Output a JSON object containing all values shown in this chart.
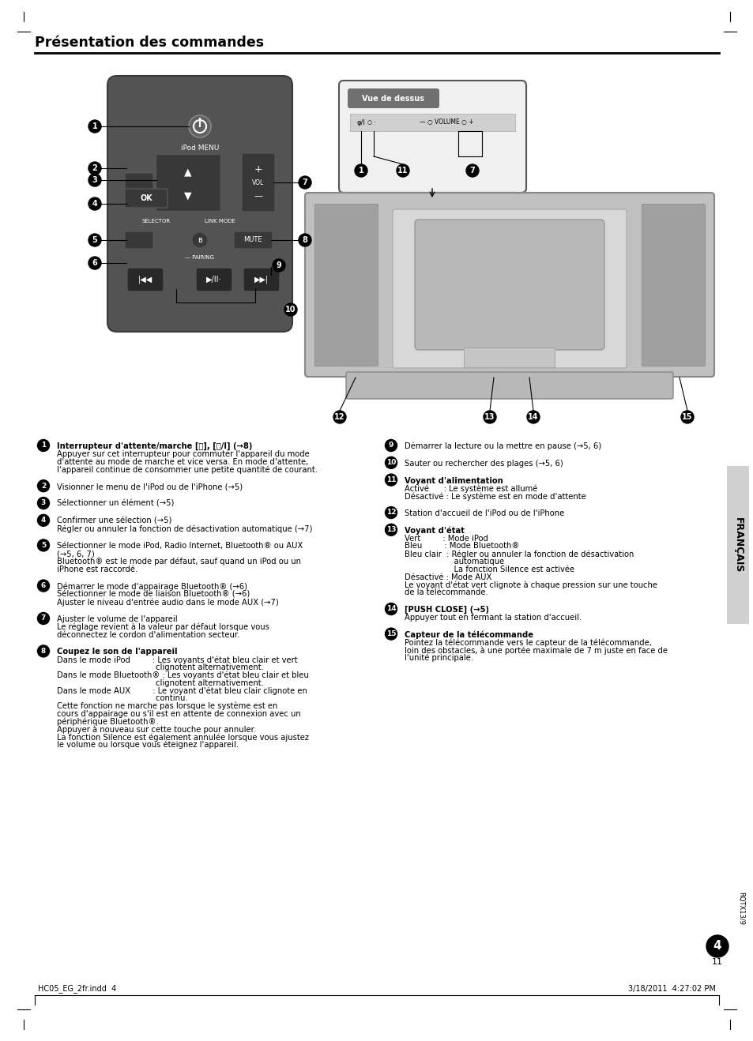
{
  "title": "Présentation des commandes",
  "bg_color": "#ffffff",
  "page_number": "11",
  "francais_sidebar": "FRANÇAIS",
  "rqtx": "RQTX13/9",
  "footer_left": "HC05_EG_2fr.indd  4",
  "footer_right": "3/18/2011  4:27:02 PM",
  "page_num_circle": "4",
  "sections_left": [
    {
      "num": "1",
      "lines": [
        [
          "bold",
          "Interrupteur d'attente/marche [⌛], [⌛/I] (→8)"
        ],
        [
          "normal",
          "Appuyer sur cet interrupteur pour commuter l'appareil du mode"
        ],
        [
          "normal",
          "d'attente au mode de marche et vice versa. En mode d'attente,"
        ],
        [
          "normal",
          "l'appareil continue de consommer une petite quantité de courant."
        ]
      ]
    },
    {
      "num": "2",
      "lines": [
        [
          "normal",
          "Visionner le menu de l'iPod ou de l'iPhone (→5)"
        ]
      ]
    },
    {
      "num": "3",
      "lines": [
        [
          "normal",
          "Sélectionner un élément (→5)"
        ]
      ]
    },
    {
      "num": "4",
      "lines": [
        [
          "normal",
          "Confirmer une sélection (→5)"
        ],
        [
          "normal",
          "Régler ou annuler la fonction de désactivation automatique (→7)"
        ]
      ]
    },
    {
      "num": "5",
      "lines": [
        [
          "normal",
          "Sélectionner le mode iPod, Radio Internet, Bluetooth® ou AUX"
        ],
        [
          "normal",
          "(→5, 6, 7)"
        ],
        [
          "normal",
          "Bluetooth® est le mode par défaut, sauf quand un iPod ou un"
        ],
        [
          "normal",
          "iPhone est raccordé."
        ]
      ]
    },
    {
      "num": "6",
      "lines": [
        [
          "normal",
          "Démarrer le mode d'appairage Bluetooth® (→6)"
        ],
        [
          "normal",
          "Sélectionner le mode de liaison Bluetooth® (→6)"
        ],
        [
          "normal",
          "Ajuster le niveau d'entrée audio dans le mode AUX (→7)"
        ]
      ]
    },
    {
      "num": "7",
      "lines": [
        [
          "normal",
          "Ajuster le volume de l'appareil"
        ],
        [
          "normal",
          "Le réglage revient à la valeur par défaut lorsque vous"
        ],
        [
          "normal",
          "déconnectez le cordon d'alimentation secteur."
        ]
      ]
    },
    {
      "num": "8",
      "lines": [
        [
          "bold",
          "Coupez le son de l'appareil"
        ],
        [
          "normal",
          "Dans le mode iPod         : Les voyants d'état bleu clair et vert"
        ],
        [
          "normal",
          "                                        clignotent alternativement."
        ],
        [
          "normal",
          "Dans le mode Bluetooth® : Les voyants d'état bleu clair et bleu"
        ],
        [
          "normal",
          "                                        clignotent alternativement."
        ],
        [
          "normal",
          "Dans le mode AUX         : Le voyant d'état bleu clair clignote en"
        ],
        [
          "normal",
          "                                        continu."
        ],
        [
          "normal",
          "Cette fonction ne marche pas lorsque le système est en"
        ],
        [
          "normal",
          "cours d'appairage ou s'il est en attente de connexion avec un"
        ],
        [
          "normal",
          "périphérique Bluetooth®."
        ],
        [
          "normal",
          "Appuyer à nouveau sur cette touche pour annuler."
        ],
        [
          "normal",
          "La fonction Silence est également annulée lorsque vous ajustez"
        ],
        [
          "normal",
          "le volume ou lorsque vous éteignez l'appareil."
        ]
      ]
    }
  ],
  "sections_right": [
    {
      "num": "9",
      "lines": [
        [
          "normal",
          "Démarrer la lecture ou la mettre en pause (→5, 6)"
        ]
      ]
    },
    {
      "num": "10",
      "lines": [
        [
          "normal",
          "Sauter ou rechercher des plages (→5, 6)"
        ]
      ]
    },
    {
      "num": "11",
      "lines": [
        [
          "bold",
          "Voyant d'alimentation"
        ],
        [
          "normal",
          "Activé      : Le système est allumé"
        ],
        [
          "normal",
          "Désactivé : Le système est en mode d'attente"
        ]
      ]
    },
    {
      "num": "12",
      "lines": [
        [
          "normal",
          "Station d'accueil de l'iPod ou de l'iPhone"
        ]
      ]
    },
    {
      "num": "13",
      "lines": [
        [
          "bold",
          "Voyant d'état"
        ],
        [
          "normal",
          "Vert         : Mode iPod"
        ],
        [
          "normal",
          "Bleu         : Mode Bluetooth®"
        ],
        [
          "normal",
          "Bleu clair  : Régler ou annuler la fonction de désactivation"
        ],
        [
          "normal",
          "                    automatique"
        ],
        [
          "normal",
          "                    La fonction Silence est activée"
        ],
        [
          "normal",
          "Désactivé : Mode AUX"
        ],
        [
          "normal",
          "Le voyant d'état vert clignote à chaque pression sur une touche"
        ],
        [
          "normal",
          "de la télécommande."
        ]
      ]
    },
    {
      "num": "14",
      "lines": [
        [
          "bold",
          "[PUSH CLOSE] (→5)"
        ],
        [
          "normal",
          "Appuyer tout en fermant la station d'accueil."
        ]
      ]
    },
    {
      "num": "15",
      "lines": [
        [
          "bold",
          "Capteur de la télécommande"
        ],
        [
          "normal",
          "Pointez la télécommande vers le capteur de la télécommande,"
        ],
        [
          "normal",
          "loin des obstacles, à une portée maximale de 7 m juste en face de"
        ],
        [
          "normal",
          "l'unité principale."
        ]
      ]
    }
  ]
}
